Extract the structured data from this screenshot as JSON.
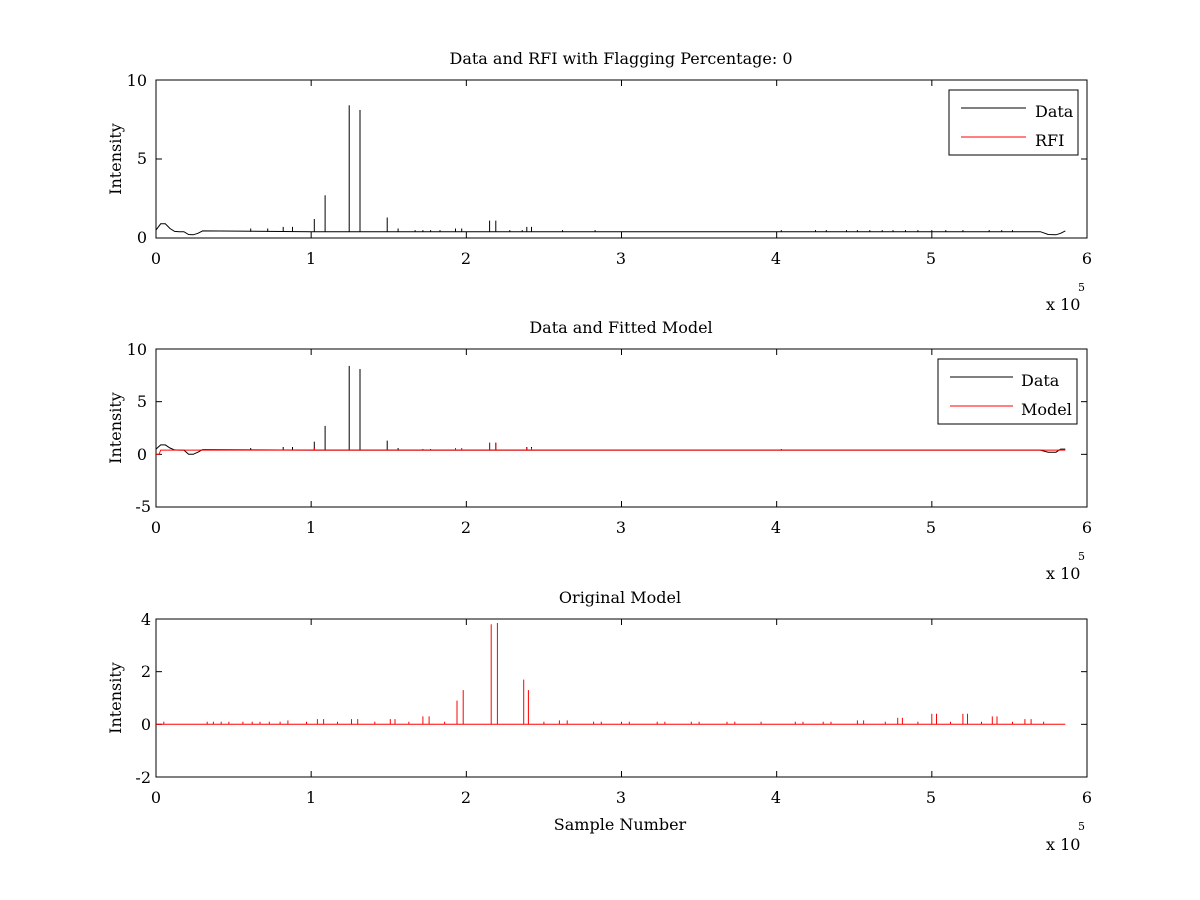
{
  "chart_data": [
    {
      "type": "line",
      "title": "Data and RFI with Flagging Percentage: 0",
      "xlabel": "",
      "ylabel": "Intensity",
      "xlim": [
        0,
        600000
      ],
      "ylim": [
        0,
        10
      ],
      "xticks": [
        "0",
        "1",
        "2",
        "3",
        "4",
        "5",
        "6"
      ],
      "yticks": [
        "0",
        "5",
        "10"
      ],
      "x_multiplier": "x 10",
      "x_multiplier_exp": "5",
      "grid": false,
      "legend": {
        "position": "top-right",
        "entries": [
          {
            "name": "Data",
            "color": "#000000"
          },
          {
            "name": "RFI",
            "color": "#ff0000"
          }
        ]
      },
      "series": [
        {
          "name": "Data",
          "color": "#000000",
          "baseline": 0.4,
          "x": [
            0,
            3000,
            6000,
            9000,
            12000,
            15000,
            18000,
            21000,
            24000,
            27000,
            30000,
            100000,
            200000,
            300000,
            400000,
            500000,
            570000,
            575000,
            580000,
            583000,
            586000
          ],
          "y": [
            0.5,
            0.9,
            0.9,
            0.6,
            0.42,
            0.4,
            0.4,
            0.22,
            0.2,
            0.3,
            0.45,
            0.4,
            0.4,
            0.4,
            0.4,
            0.4,
            0.4,
            0.22,
            0.2,
            0.3,
            0.45
          ],
          "spikes": [
            {
              "x": 61000,
              "y": 0.6
            },
            {
              "x": 72000,
              "y": 0.6
            },
            {
              "x": 82000,
              "y": 0.7
            },
            {
              "x": 88000,
              "y": 0.7
            },
            {
              "x": 102000,
              "y": 1.2
            },
            {
              "x": 109000,
              "y": 2.7
            },
            {
              "x": 124500,
              "y": 8.4
            },
            {
              "x": 131500,
              "y": 8.1
            },
            {
              "x": 149000,
              "y": 1.3
            },
            {
              "x": 156000,
              "y": 0.6
            },
            {
              "x": 167000,
              "y": 0.5
            },
            {
              "x": 172000,
              "y": 0.5
            },
            {
              "x": 177000,
              "y": 0.5
            },
            {
              "x": 183000,
              "y": 0.5
            },
            {
              "x": 193000,
              "y": 0.6
            },
            {
              "x": 197000,
              "y": 0.6
            },
            {
              "x": 215000,
              "y": 1.1
            },
            {
              "x": 219000,
              "y": 1.1
            },
            {
              "x": 228000,
              "y": 0.5
            },
            {
              "x": 236000,
              "y": 0.5
            },
            {
              "x": 239000,
              "y": 0.7
            },
            {
              "x": 242000,
              "y": 0.7
            },
            {
              "x": 262000,
              "y": 0.5
            },
            {
              "x": 283000,
              "y": 0.5
            },
            {
              "x": 403000,
              "y": 0.5
            },
            {
              "x": 425000,
              "y": 0.5
            },
            {
              "x": 432000,
              "y": 0.5
            },
            {
              "x": 445000,
              "y": 0.5
            },
            {
              "x": 452000,
              "y": 0.5
            },
            {
              "x": 460000,
              "y": 0.5
            },
            {
              "x": 468000,
              "y": 0.5
            },
            {
              "x": 475000,
              "y": 0.5
            },
            {
              "x": 483000,
              "y": 0.5
            },
            {
              "x": 491000,
              "y": 0.5
            },
            {
              "x": 500000,
              "y": 0.5
            },
            {
              "x": 509000,
              "y": 0.5
            },
            {
              "x": 520000,
              "y": 0.5
            },
            {
              "x": 537000,
              "y": 0.5
            },
            {
              "x": 545000,
              "y": 0.5
            },
            {
              "x": 552000,
              "y": 0.5
            }
          ]
        },
        {
          "name": "RFI",
          "color": "#ff0000",
          "x": [],
          "y": []
        }
      ]
    },
    {
      "type": "line",
      "title": "Data and Fitted Model",
      "xlabel": "",
      "ylabel": "Intensity",
      "xlim": [
        0,
        600000
      ],
      "ylim": [
        -5,
        10
      ],
      "xticks": [
        "0",
        "1",
        "2",
        "3",
        "4",
        "5",
        "6"
      ],
      "yticks": [
        "-5",
        "0",
        "5",
        "10"
      ],
      "x_multiplier": "x 10",
      "x_multiplier_exp": "5",
      "grid": false,
      "legend": {
        "position": "top-right",
        "entries": [
          {
            "name": "Data",
            "color": "#000000"
          },
          {
            "name": "Model",
            "color": "#ff0000"
          }
        ]
      },
      "series": [
        {
          "name": "Data",
          "color": "#000000",
          "baseline": 0.4,
          "x": [
            0,
            3000,
            6000,
            9000,
            12000,
            15000,
            18000,
            21000,
            24000,
            27000,
            30000,
            100000,
            200000,
            300000,
            400000,
            500000,
            570000,
            575000,
            580000,
            583000,
            586000
          ],
          "y": [
            0.5,
            0.9,
            0.9,
            0.6,
            0.42,
            0.4,
            0.4,
            0.0,
            0.0,
            0.2,
            0.45,
            0.4,
            0.4,
            0.4,
            0.4,
            0.4,
            0.4,
            0.2,
            0.2,
            0.5,
            0.5
          ],
          "spikes": [
            {
              "x": 61000,
              "y": 0.6
            },
            {
              "x": 82000,
              "y": 0.7
            },
            {
              "x": 88000,
              "y": 0.7
            },
            {
              "x": 102000,
              "y": 1.2
            },
            {
              "x": 109000,
              "y": 2.7
            },
            {
              "x": 124500,
              "y": 8.4
            },
            {
              "x": 131500,
              "y": 8.1
            },
            {
              "x": 149000,
              "y": 1.3
            },
            {
              "x": 156000,
              "y": 0.6
            },
            {
              "x": 172000,
              "y": 0.5
            },
            {
              "x": 177000,
              "y": 0.5
            },
            {
              "x": 193000,
              "y": 0.6
            },
            {
              "x": 215000,
              "y": 1.1
            },
            {
              "x": 219000,
              "y": 1.1
            },
            {
              "x": 239000,
              "y": 0.7
            },
            {
              "x": 242000,
              "y": 0.7
            },
            {
              "x": 403000,
              "y": 0.5
            }
          ]
        },
        {
          "name": "Model",
          "color": "#ff0000",
          "baseline": 0.4,
          "x": [
            0,
            1000,
            2000,
            3000,
            4000,
            586000
          ],
          "y": [
            0.0,
            0.0,
            0.0,
            0.4,
            0.4,
            0.4
          ],
          "spikes": [
            {
              "x": 102000,
              "y": 0.6
            },
            {
              "x": 193000,
              "y": 0.6
            },
            {
              "x": 197000,
              "y": 0.6
            },
            {
              "x": 215000,
              "y": 1.1
            },
            {
              "x": 219000,
              "y": 1.1
            },
            {
              "x": 239000,
              "y": 0.6
            },
            {
              "x": 242000,
              "y": 0.6
            }
          ]
        }
      ]
    },
    {
      "type": "line",
      "title": "Original Model",
      "xlabel": "Sample Number",
      "ylabel": "Intensity",
      "xlim": [
        0,
        600000
      ],
      "ylim": [
        -2,
        4
      ],
      "xticks": [
        "0",
        "1",
        "2",
        "3",
        "4",
        "5",
        "6"
      ],
      "yticks": [
        "-2",
        "0",
        "2",
        "4"
      ],
      "x_multiplier": "x 10",
      "x_multiplier_exp": "5",
      "grid": false,
      "series": [
        {
          "name": "",
          "color": "#ff0000",
          "baseline": 0.0,
          "x": [
            0,
            586000
          ],
          "y": [
            0.0,
            0.0
          ],
          "spikes": [
            {
              "x": 5000,
              "y": 0.1
            },
            {
              "x": 33000,
              "y": 0.1
            },
            {
              "x": 37000,
              "y": 0.1
            },
            {
              "x": 42000,
              "y": 0.1
            },
            {
              "x": 47000,
              "y": 0.1
            },
            {
              "x": 56000,
              "y": 0.1
            },
            {
              "x": 62000,
              "y": 0.1
            },
            {
              "x": 67000,
              "y": 0.1
            },
            {
              "x": 73000,
              "y": 0.1
            },
            {
              "x": 80000,
              "y": 0.1
            },
            {
              "x": 85000,
              "y": 0.15
            },
            {
              "x": 97000,
              "y": 0.1
            },
            {
              "x": 104000,
              "y": 0.2
            },
            {
              "x": 108000,
              "y": 0.2
            },
            {
              "x": 117000,
              "y": 0.1
            },
            {
              "x": 126000,
              "y": 0.2
            },
            {
              "x": 130000,
              "y": 0.2
            },
            {
              "x": 141000,
              "y": 0.1
            },
            {
              "x": 151000,
              "y": 0.2
            },
            {
              "x": 154000,
              "y": 0.2
            },
            {
              "x": 163000,
              "y": 0.1
            },
            {
              "x": 172000,
              "y": 0.3
            },
            {
              "x": 176000,
              "y": 0.3
            },
            {
              "x": 186000,
              "y": 0.1
            },
            {
              "x": 194000,
              "y": 0.9
            },
            {
              "x": 198000,
              "y": 1.3
            },
            {
              "x": 216000,
              "y": 3.8
            },
            {
              "x": 220000,
              "y": 3.85
            },
            {
              "x": 237000,
              "y": 1.7
            },
            {
              "x": 240000,
              "y": 1.3
            },
            {
              "x": 250000,
              "y": 0.1
            },
            {
              "x": 260000,
              "y": 0.15
            },
            {
              "x": 265000,
              "y": 0.15
            },
            {
              "x": 282000,
              "y": 0.1
            },
            {
              "x": 287000,
              "y": 0.1
            },
            {
              "x": 300000,
              "y": 0.1
            },
            {
              "x": 305000,
              "y": 0.1
            },
            {
              "x": 323000,
              "y": 0.1
            },
            {
              "x": 328000,
              "y": 0.1
            },
            {
              "x": 345000,
              "y": 0.1
            },
            {
              "x": 350000,
              "y": 0.1
            },
            {
              "x": 368000,
              "y": 0.1
            },
            {
              "x": 373000,
              "y": 0.1
            },
            {
              "x": 390000,
              "y": 0.1
            },
            {
              "x": 412000,
              "y": 0.1
            },
            {
              "x": 417000,
              "y": 0.1
            },
            {
              "x": 430000,
              "y": 0.1
            },
            {
              "x": 435000,
              "y": 0.1
            },
            {
              "x": 452000,
              "y": 0.15
            },
            {
              "x": 456000,
              "y": 0.15
            },
            {
              "x": 470000,
              "y": 0.1
            },
            {
              "x": 478000,
              "y": 0.25
            },
            {
              "x": 481000,
              "y": 0.25
            },
            {
              "x": 491000,
              "y": 0.1
            },
            {
              "x": 500000,
              "y": 0.4
            },
            {
              "x": 503000,
              "y": 0.4
            },
            {
              "x": 512000,
              "y": 0.1
            },
            {
              "x": 520000,
              "y": 0.4
            },
            {
              "x": 523000,
              "y": 0.4
            },
            {
              "x": 532000,
              "y": 0.1
            },
            {
              "x": 539000,
              "y": 0.3
            },
            {
              "x": 542000,
              "y": 0.3
            },
            {
              "x": 552000,
              "y": 0.1
            },
            {
              "x": 560000,
              "y": 0.2
            },
            {
              "x": 564000,
              "y": 0.2
            },
            {
              "x": 572000,
              "y": 0.1
            }
          ]
        }
      ]
    }
  ]
}
